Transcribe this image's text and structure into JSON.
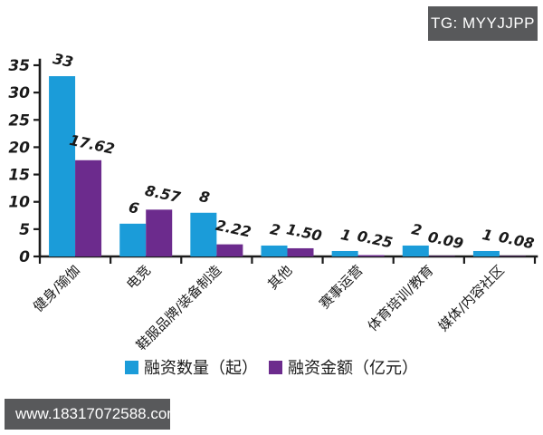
{
  "page": {
    "background": "#ffffff"
  },
  "badge": {
    "label": "TG: MYYJJPP",
    "bg_color": "#58595b",
    "text_color": "#ffffff"
  },
  "watermark": {
    "label": "www.18317072588.com",
    "bg_color": "#58595b",
    "text_color": "#ffffff"
  },
  "chart_data": {
    "type": "bar",
    "style": "hand-drawn xkcd-like grouped bars",
    "title": "",
    "xlabel": "",
    "ylabel": "",
    "categories": [
      "健身/瑜伽",
      "电竞",
      "鞋服品牌/装备制造",
      "其他",
      "赛事运营",
      "体育培训/教育",
      "媒体/内容社区"
    ],
    "series": [
      {
        "name": "融资数量（起）",
        "color": "#1b9cd9",
        "values": [
          33,
          6,
          8,
          2,
          1,
          2,
          1
        ]
      },
      {
        "name": "融资金额（亿元）",
        "color": "#6c2b8d",
        "values": [
          17.62,
          8.57,
          2.22,
          1.5,
          0.25,
          0.09,
          0.08
        ]
      }
    ],
    "value_labels": [
      [
        "33",
        "6",
        "8",
        "2",
        "1",
        "2",
        "1"
      ],
      [
        "17.62",
        "8.57",
        "2.22",
        "1.50",
        "0.25",
        "0.09",
        "0.08"
      ]
    ],
    "yticks": [
      "0",
      "5",
      "10",
      "15",
      "20",
      "25",
      "30",
      "35"
    ],
    "ylim": [
      0,
      35
    ],
    "grid": false,
    "legend_position": "bottom-center",
    "axis_color": "#1a1a1a"
  }
}
